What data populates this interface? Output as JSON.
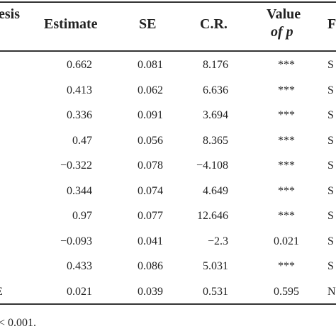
{
  "header": {
    "hypothesis_fragment": "esis",
    "estimate": "Estimate",
    "se": "SE",
    "cr": "C.R.",
    "value_of_p_line1": "Value",
    "value_of_p_line2": "of p",
    "result_fragment": "F"
  },
  "rows": [
    {
      "left": "",
      "estimate": "0.662",
      "se": "0.081",
      "cr": "8.176",
      "p": "***",
      "result": "S"
    },
    {
      "left": "",
      "estimate": "0.413",
      "se": "0.062",
      "cr": "6.636",
      "p": "***",
      "result": "S"
    },
    {
      "left": "",
      "estimate": "0.336",
      "se": "0.091",
      "cr": "3.694",
      "p": "***",
      "result": "S"
    },
    {
      "left": "",
      "estimate": "0.47",
      "se": "0.056",
      "cr": "8.365",
      "p": "***",
      "result": "S"
    },
    {
      "left": "",
      "estimate": "−0.322",
      "se": "0.078",
      "cr": "−4.108",
      "p": "***",
      "result": "S"
    },
    {
      "left": "",
      "estimate": "0.344",
      "se": "0.074",
      "cr": "4.649",
      "p": "***",
      "result": "S"
    },
    {
      "left": "",
      "estimate": "0.97",
      "se": "0.077",
      "cr": "12.646",
      "p": "***",
      "result": "S"
    },
    {
      "left": "",
      "estimate": "−0.093",
      "se": "0.041",
      "cr": "−2.3",
      "p": "0.021",
      "result": "S"
    },
    {
      "left": "",
      "estimate": "0.433",
      "se": "0.086",
      "cr": "5.031",
      "p": "***",
      "result": "S"
    },
    {
      "left": "E",
      "estimate": "0.021",
      "se": "0.039",
      "cr": "0.531",
      "p": "0.595",
      "result": "N"
    }
  ],
  "footnote": "< 0.001."
}
